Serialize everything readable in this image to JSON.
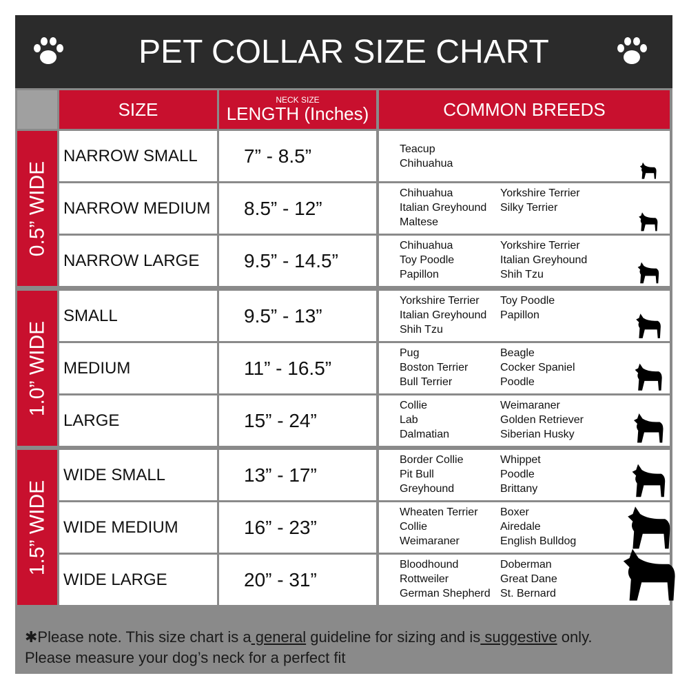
{
  "header": {
    "title": "PET COLLAR SIZE CHART"
  },
  "columns": {
    "size": "SIZE",
    "neck_small": "NECK SIZE",
    "length": "LENGTH (Inches)",
    "breeds": "COMMON BREEDS"
  },
  "groups": [
    {
      "label": "0.5” WIDE",
      "rows": [
        {
          "size": "NARROW SMALL",
          "length": "7” - 8.5”",
          "breeds": [
            [
              "Teacup",
              "Chihuahua"
            ],
            []
          ]
        },
        {
          "size": "NARROW MEDIUM",
          "length": "8.5” - 12”",
          "breeds": [
            [
              "Chihuahua",
              "Italian Greyhound",
              "Maltese"
            ],
            [
              "Yorkshire Terrier",
              "Silky Terrier"
            ]
          ]
        },
        {
          "size": "NARROW LARGE",
          "length": "9.5” - 14.5”",
          "breeds": [
            [
              "Chihuahua",
              "Toy Poodle",
              "Papillon"
            ],
            [
              "Yorkshire Terrier",
              "Italian Greyhound",
              "Shih Tzu"
            ]
          ]
        }
      ]
    },
    {
      "label": "1.0” WIDE",
      "rows": [
        {
          "size": "SMALL",
          "length": "9.5” - 13”",
          "breeds": [
            [
              "Yorkshire Terrier",
              "Italian Greyhound",
              "Shih Tzu"
            ],
            [
              "Toy Poodle",
              "Papillon"
            ]
          ]
        },
        {
          "size": "MEDIUM",
          "length": "11” - 16.5”",
          "breeds": [
            [
              "Pug",
              "Boston Terrier",
              "Bull Terrier"
            ],
            [
              "Beagle",
              "Cocker Spaniel",
              "Poodle"
            ]
          ]
        },
        {
          "size": "LARGE",
          "length": "15” - 24”",
          "breeds": [
            [
              "Collie",
              "Lab",
              "Dalmatian"
            ],
            [
              "Weimaraner",
              "Golden Retriever",
              "Siberian Husky"
            ]
          ]
        }
      ]
    },
    {
      "label": "1.5” WIDE",
      "rows": [
        {
          "size": "WIDE SMALL",
          "length": "13” - 17”",
          "breeds": [
            [
              "Border Collie",
              "Pit Bull",
              "Greyhound"
            ],
            [
              "Whippet",
              "Poodle",
              "Brittany"
            ]
          ]
        },
        {
          "size": "WIDE MEDIUM",
          "length": "16” - 23”",
          "breeds": [
            [
              "Wheaten Terrier",
              "Collie",
              "Weimaraner"
            ],
            [
              "Boxer",
              "Airedale",
              "English Bulldog"
            ]
          ]
        },
        {
          "size": "WIDE LARGE",
          "length": "20” - 31”",
          "breeds": [
            [
              "Bloodhound",
              "Rottweiler",
              "German Shepherd"
            ],
            [
              "Doberman",
              "Great Dane",
              "St. Bernard"
            ]
          ]
        }
      ]
    }
  ],
  "note": {
    "parts": [
      "✱Please note. This size chart is a",
      " general",
      " guideline for sizing and is",
      " suggestive",
      " only."
    ],
    "line2": "Please measure your dog’s neck for a perfect fit"
  }
}
